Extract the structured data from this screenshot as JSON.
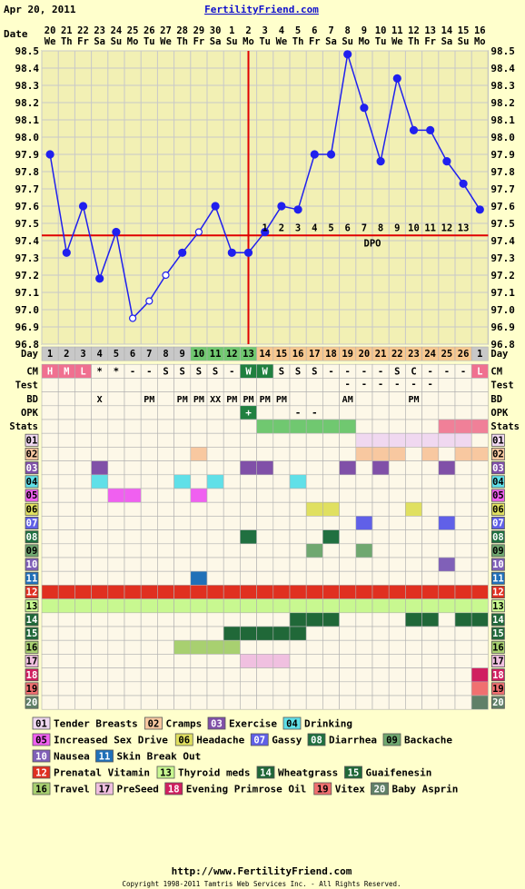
{
  "header": {
    "date": "Apr 20, 2011",
    "site": "FertilityFriend.com"
  },
  "footer": {
    "url": "http://www.FertilityFriend.com",
    "copyright": "Copyright 1998-2011 Tamtris Web Services Inc. - All Rights Reserved."
  },
  "colors": {
    "bg": "#ffffcc",
    "plot_bg": "#f2f0b4",
    "grid": "#c8c8c8",
    "line": "#2020ee",
    "coverline": "#e00000",
    "site": "#1010cc"
  },
  "chart_data": {
    "type": "line",
    "ylabel": "Date",
    "ylim": [
      96.8,
      98.5
    ],
    "yticks": [
      "98.5",
      "98.4",
      "98.3",
      "98.2",
      "98.1",
      "98.0",
      "97.9",
      "97.8",
      "97.7",
      "97.6",
      "97.5",
      "97.4",
      "97.3",
      "97.2",
      "97.1",
      "97.0",
      "96.9",
      "96.8"
    ],
    "dates": [
      "20",
      "21",
      "22",
      "23",
      "24",
      "25",
      "26",
      "27",
      "28",
      "29",
      "30",
      "1",
      "2",
      "3",
      "4",
      "5",
      "6",
      "7",
      "8",
      "9",
      "10",
      "11",
      "12",
      "13",
      "14",
      "15",
      "16"
    ],
    "weekdays": [
      "We",
      "Th",
      "Fr",
      "Sa",
      "Su",
      "Mo",
      "Tu",
      "We",
      "Th",
      "Fr",
      "Sa",
      "Su",
      "Mo",
      "Tu",
      "We",
      "Th",
      "Fr",
      "Sa",
      "Su",
      "Mo",
      "Tu",
      "We",
      "Th",
      "Fr",
      "Sa",
      "Su",
      "Mo"
    ],
    "series": [
      {
        "values": [
          97.9,
          97.33,
          97.6,
          97.18,
          97.45,
          96.95,
          97.05,
          97.2,
          97.33,
          97.45,
          97.6,
          97.33,
          97.33,
          97.45,
          97.6,
          97.58,
          97.9,
          97.9,
          98.48,
          98.17,
          97.86,
          98.34,
          98.04,
          98.04,
          97.86,
          97.73,
          97.58
        ]
      }
    ],
    "open_points": [
      5,
      6,
      7,
      9
    ],
    "coverline": 97.43,
    "ovulation_day_index": 12,
    "dpo_labels": [
      "1",
      "2",
      "3",
      "4",
      "5",
      "6",
      "7",
      "8",
      "9",
      "10",
      "11",
      "12",
      "13"
    ],
    "dpo_text": "DPO",
    "cycle_days": [
      "1",
      "2",
      "3",
      "4",
      "5",
      "6",
      "7",
      "8",
      "9",
      "10",
      "11",
      "12",
      "13",
      "14",
      "15",
      "16",
      "17",
      "18",
      "19",
      "20",
      "21",
      "22",
      "23",
      "24",
      "25",
      "26",
      "1"
    ],
    "rows": {
      "day": "Day",
      "cm": "CM",
      "test": "Test",
      "bd": "BD",
      "opk": "OPK",
      "stats": "Stats",
      "cm_values": [
        "H",
        "M",
        "L",
        "*",
        "*",
        "-",
        "-",
        "S",
        "S",
        "S",
        "S",
        "-",
        "W",
        "W",
        "S",
        "S",
        "S",
        "-",
        "-",
        "-",
        "-",
        "S",
        "C",
        "-",
        "-",
        "-",
        "L"
      ],
      "test_values": [
        "",
        "",
        "",
        "",
        "",
        "",
        "",
        "",
        "",
        "",
        "",
        "",
        "",
        "",
        "",
        "",
        "",
        "",
        "-",
        "-",
        "-",
        "-",
        "-",
        "-",
        "",
        "",
        ""
      ],
      "bd_values": [
        "",
        "",
        "",
        "X",
        "",
        "",
        "PM",
        "",
        "PM",
        "PM",
        "XX",
        "PM",
        "PM",
        "PM",
        "PM",
        "",
        "",
        "",
        "AM",
        "",
        "",
        "",
        "PM",
        "",
        "",
        "",
        ""
      ],
      "opk_values": [
        "",
        "",
        "",
        "",
        "",
        "",
        "",
        "",
        "",
        "",
        "",
        "",
        "+",
        "",
        "",
        "-",
        "-",
        "",
        "",
        "",
        "",
        "",
        "",
        "",
        "",
        "",
        ""
      ]
    },
    "symptoms": [
      {
        "code": "01",
        "name": "Tender Breasts",
        "color": "#f0d8f0",
        "days": [
          19,
          20,
          21,
          22,
          23,
          24,
          25
        ]
      },
      {
        "code": "02",
        "name": "Cramps",
        "color": "#f8c8a0",
        "days": [
          9,
          19,
          20,
          21,
          23,
          25,
          26
        ]
      },
      {
        "code": "03",
        "name": "Exercise",
        "color": "#8050a8",
        "days": [
          3,
          12,
          13,
          18,
          20,
          24
        ]
      },
      {
        "code": "04",
        "name": "Drinking",
        "color": "#60e0e8",
        "days": [
          3,
          8,
          10,
          15
        ]
      },
      {
        "code": "05",
        "name": "Increased Sex Drive",
        "color": "#f060f0",
        "days": [
          4,
          5,
          9
        ]
      },
      {
        "code": "06",
        "name": "Headache",
        "color": "#e0e060",
        "days": [
          16,
          17,
          22
        ]
      },
      {
        "code": "07",
        "name": "Gassy",
        "color": "#6060e8",
        "days": [
          19,
          24
        ]
      },
      {
        "code": "08",
        "name": "Diarrhea",
        "color": "#207040",
        "days": [
          12,
          17
        ]
      },
      {
        "code": "09",
        "name": "Backache",
        "color": "#70a870",
        "days": [
          16,
          19
        ]
      },
      {
        "code": "10",
        "name": "Nausea",
        "color": "#8060b8",
        "days": [
          24
        ]
      },
      {
        "code": "11",
        "name": "Skin Break Out",
        "color": "#2070b8",
        "days": [
          9
        ]
      },
      {
        "code": "12",
        "name": "Prenatal Vitamin",
        "color": "#e03020",
        "days": [
          0,
          1,
          2,
          3,
          4,
          5,
          6,
          7,
          8,
          9,
          10,
          11,
          12,
          13,
          14,
          15,
          16,
          17,
          18,
          19,
          20,
          21,
          22,
          23,
          24,
          25,
          26
        ]
      },
      {
        "code": "13",
        "name": "Thyroid meds",
        "color": "#c8f890",
        "days": [
          0,
          1,
          2,
          3,
          4,
          5,
          6,
          7,
          8,
          9,
          10,
          11,
          12,
          13,
          14,
          15,
          16,
          17,
          18,
          19,
          20,
          21,
          22,
          23,
          24,
          25,
          26
        ]
      },
      {
        "code": "14",
        "name": "Wheatgrass",
        "color": "#206838",
        "days": [
          15,
          16,
          17,
          22,
          23,
          25,
          26
        ]
      },
      {
        "code": "15",
        "name": "Guaifenesin",
        "color": "#206838",
        "days": [
          11,
          12,
          13,
          14,
          15
        ]
      },
      {
        "code": "16",
        "name": "Travel",
        "color": "#a8d070",
        "days": [
          8,
          9,
          10,
          11
        ]
      },
      {
        "code": "17",
        "name": "PreSeed",
        "color": "#f0c0e0",
        "days": [
          12,
          13,
          14
        ]
      },
      {
        "code": "18",
        "name": "Evening Primrose Oil",
        "color": "#d02060",
        "days": [
          26
        ]
      },
      {
        "code": "19",
        "name": "Vitex",
        "color": "#f07070",
        "days": [
          26
        ]
      },
      {
        "code": "20",
        "name": "Baby Asprin",
        "color": "#608068",
        "days": [
          26
        ]
      }
    ]
  }
}
